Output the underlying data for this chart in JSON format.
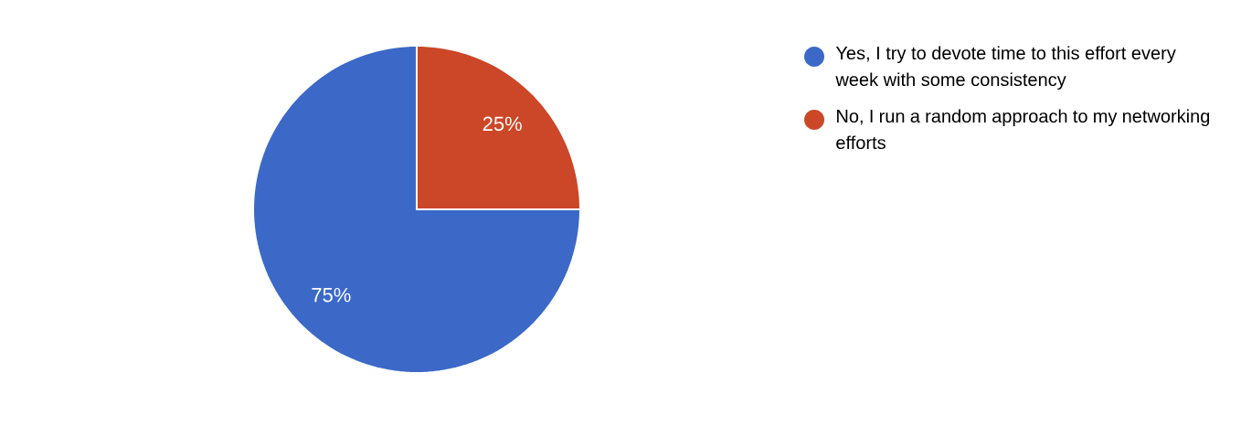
{
  "chart_data": {
    "type": "pie",
    "categories": [
      "Yes, I try to devote time to this effort every week with some consistency",
      "No, I run a random approach to my networking efforts"
    ],
    "values": [
      75,
      25
    ],
    "colors": [
      "#3c69c7",
      "#cc4628"
    ],
    "value_labels": [
      "75%",
      "25%"
    ],
    "legend": "right"
  }
}
